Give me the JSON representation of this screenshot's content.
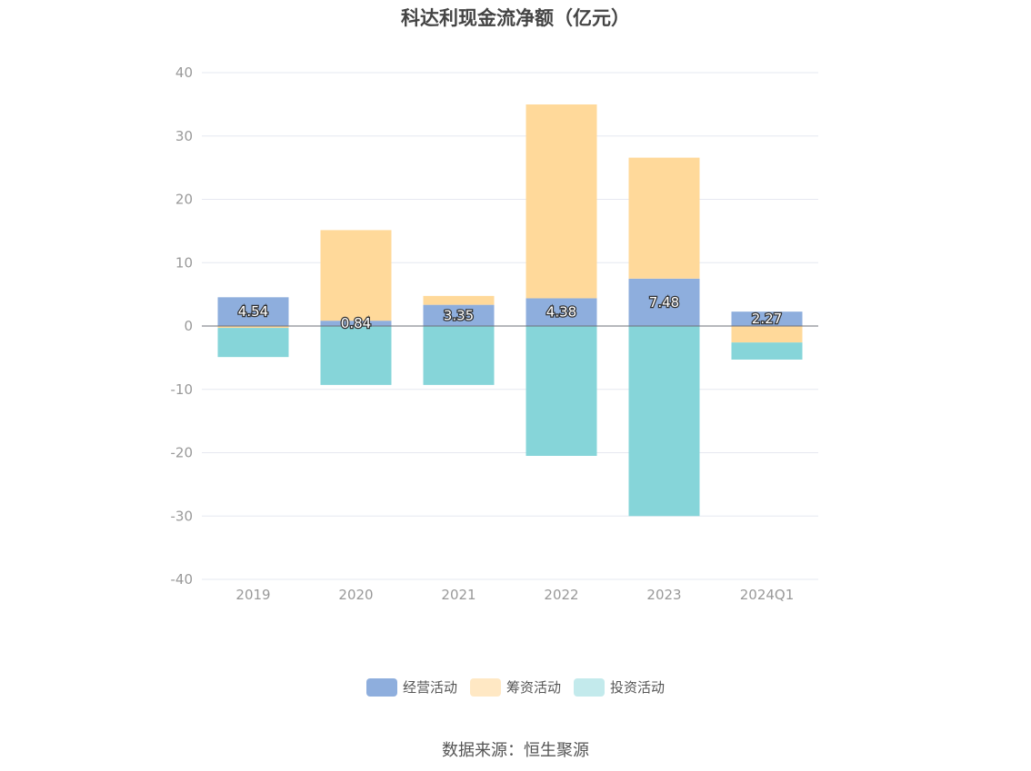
{
  "chart_data": {
    "type": "bar",
    "stacked": true,
    "title": "科达利现金流净额（亿元）",
    "categories": [
      "2019",
      "2020",
      "2021",
      "2022",
      "2023",
      "2024Q1"
    ],
    "ylim": [
      -40,
      40
    ],
    "yticks": [
      40,
      30,
      20,
      10,
      0,
      -10,
      -20,
      -30,
      -40
    ],
    "grid": true,
    "legend_position": "bottom",
    "series": [
      {
        "name": "经营活动",
        "color": "#8eaedd",
        "values": [
          4.54,
          0.84,
          3.35,
          4.38,
          7.48,
          2.27
        ]
      },
      {
        "name": "筹资活动",
        "color": "#ffd99a",
        "values": [
          -0.3,
          14.3,
          1.4,
          30.6,
          19.1,
          -2.6
        ]
      },
      {
        "name": "投资活动",
        "color": "#86d5d9",
        "values": [
          -4.6,
          -9.3,
          -9.3,
          -20.5,
          -30.0,
          -2.7
        ]
      }
    ],
    "data_labels": [
      "4.54",
      "0.84",
      "3.35",
      "4.38",
      "7.48",
      "2.27"
    ],
    "source": "数据来源：恒生聚源"
  }
}
